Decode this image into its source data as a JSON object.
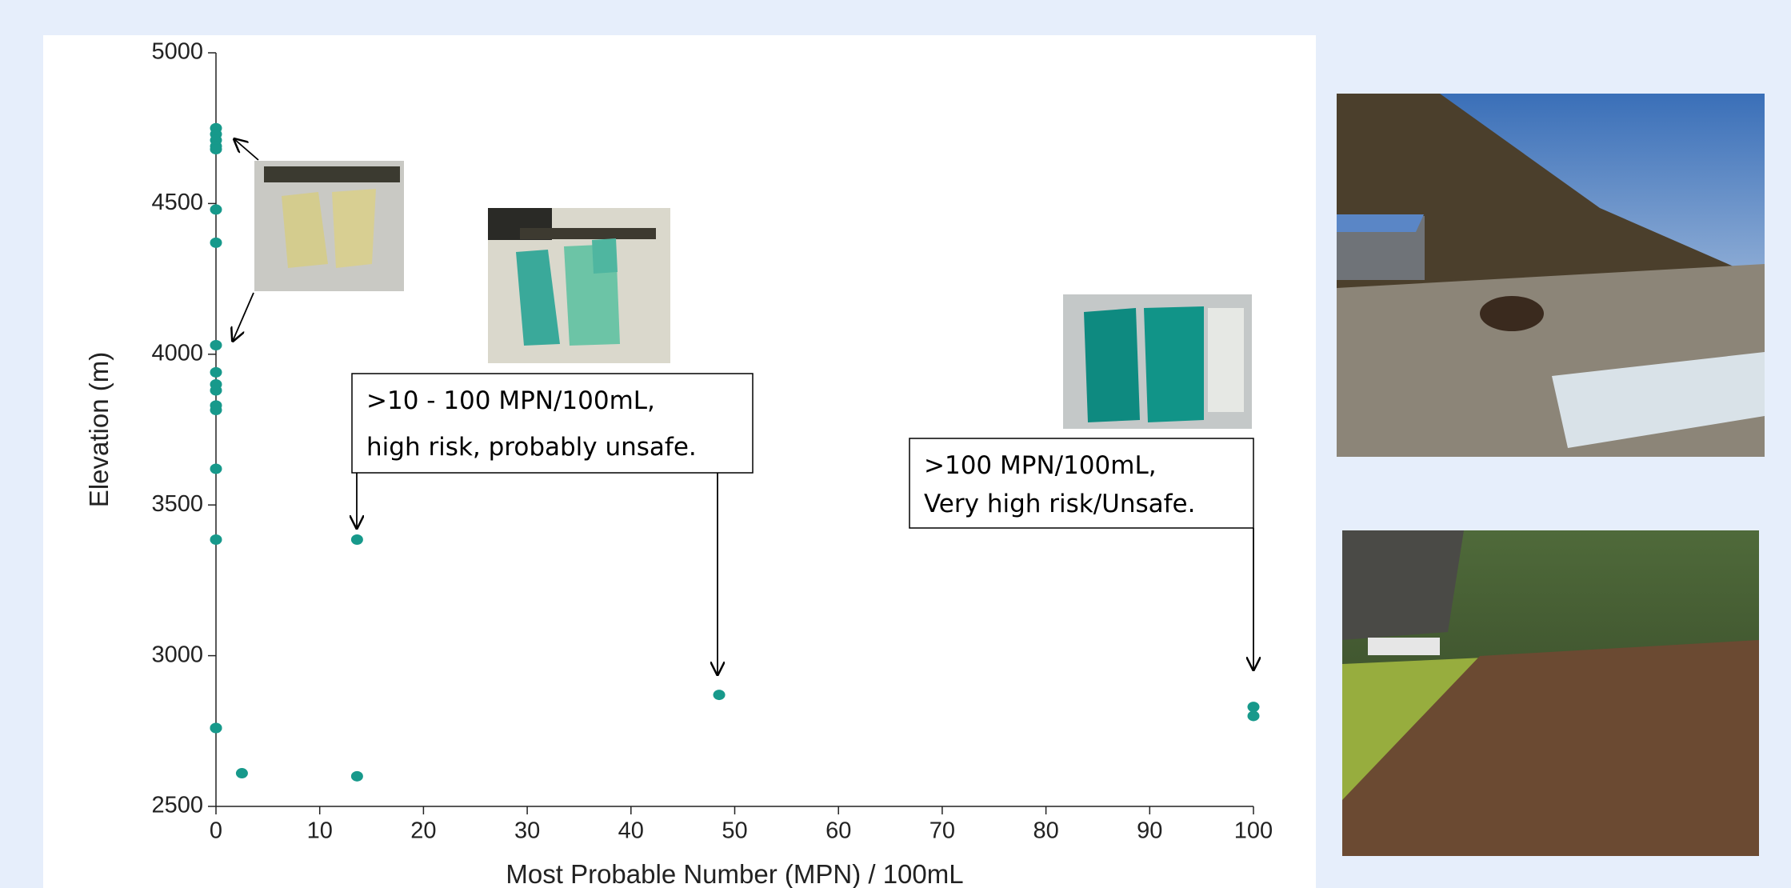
{
  "chart_data": {
    "type": "scatter",
    "x_label": "Most Probable Number (MPN) / 100mL",
    "y_label": "Elevation (m)",
    "x": [
      0,
      0,
      0,
      0,
      0,
      0,
      0,
      0,
      0,
      0,
      0,
      0,
      0,
      0,
      0,
      0,
      0,
      2.5,
      13.6,
      13.6,
      48.5,
      100,
      100
    ],
    "values": [
      4750,
      4730,
      4710,
      4690,
      4680,
      4480,
      4370,
      4030,
      3940,
      3900,
      3880,
      3830,
      3815,
      3620,
      3385,
      2760,
      2760,
      2610,
      3385,
      2600,
      2870,
      2830,
      2800
    ],
    "color": "#17998b",
    "xlim": [
      0,
      100
    ],
    "xticks": [
      0,
      10,
      20,
      30,
      40,
      50,
      60,
      70,
      80,
      90,
      100
    ],
    "ylim": [
      2500,
      5000
    ],
    "yticks": [
      2500,
      3000,
      3500,
      4000,
      4500,
      5000
    ],
    "annotations": [
      {
        "lines": [
          ">10 - 100 MPN/100mL,",
          "high risk, probably unsafe."
        ]
      },
      {
        "lines": [
          ">100 MPN/100mL,",
          "Very high risk/Unsafe."
        ]
      }
    ]
  }
}
